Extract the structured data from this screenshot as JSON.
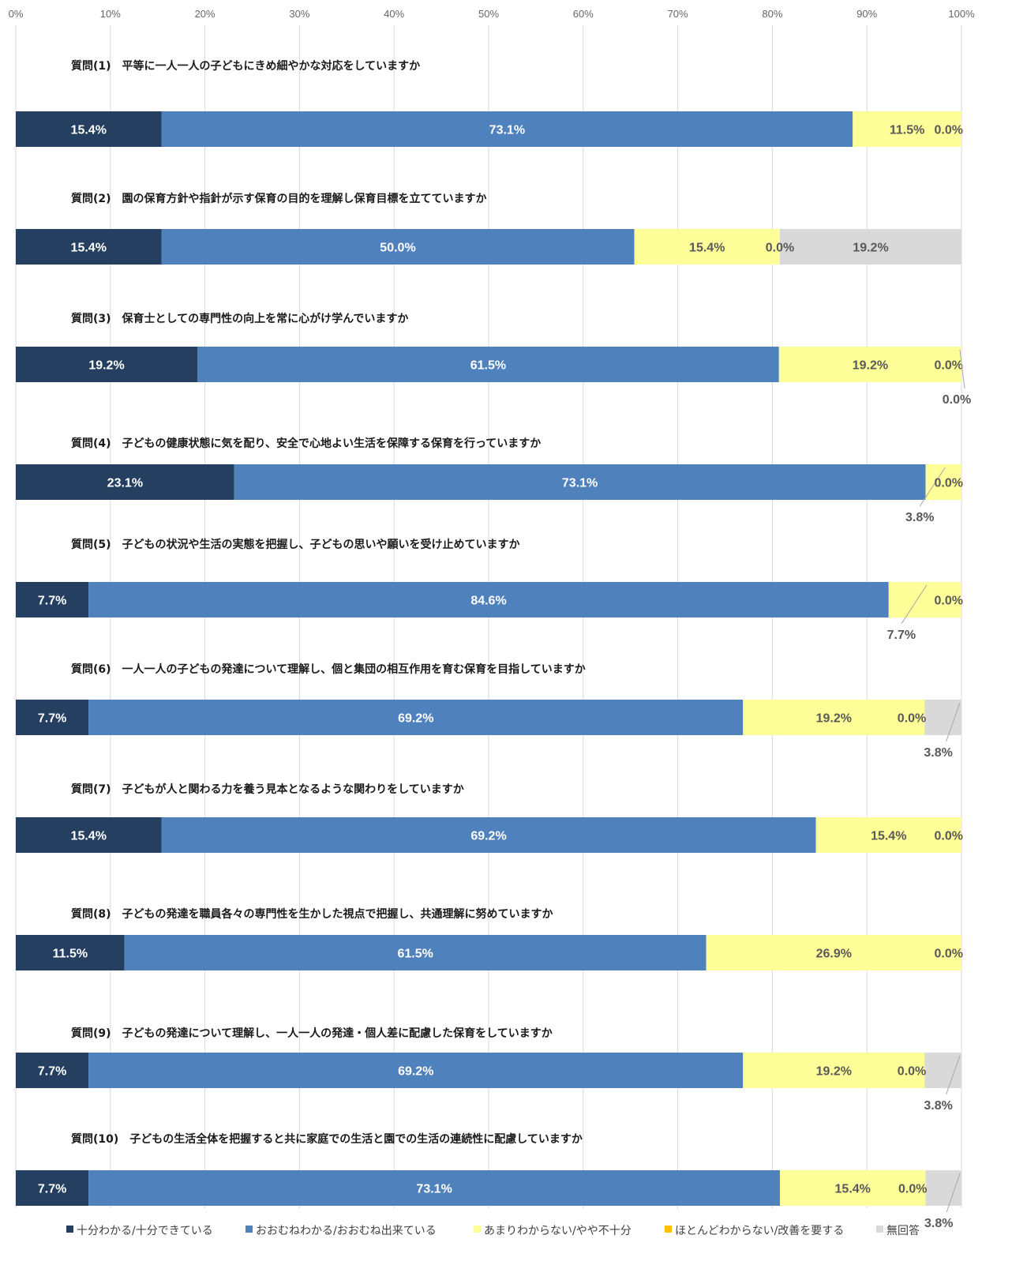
{
  "chart_data": {
    "type": "bar",
    "stacked": "percent",
    "orientation": "horizontal",
    "xlim": [
      0,
      100
    ],
    "x_ticks": [
      "0%",
      "10%",
      "20%",
      "30%",
      "40%",
      "50%",
      "60%",
      "70%",
      "80%",
      "90%",
      "100%"
    ],
    "grid": "vertical",
    "legend_position": "bottom",
    "categories": [
      "質問(1)　平等に一人一人の子どもにきめ細やかな対応をしていますか",
      "質問(2)　園の保育方針や指針が示す保育の目的を理解し保育目標を立てていますか",
      "質問(3)　保育士としての専門性の向上を常に心がけ学んでいますか",
      "質問(4)　子どもの健康状態に気を配り、安全で心地よい生活を保障する保育を行っていますか",
      "質問(5)　子どもの状況や生活の実態を把握し、子どもの思いや願いを受け止めていますか",
      "質問(6)　一人一人の子どもの発達について理解し、個と集団の相互作用を育む保育を目指していますか",
      "質問(7)　子どもが人と関わる力を養う見本となるような関わりをしていますか",
      "質問(8)　子どもの発達を職員各々の専門性を生かした視点で把握し、共通理解に努めていますか",
      "質問(9)　子どもの発達について理解し、一人一人の発達・個人差に配慮した保育をしていますか",
      "質問(10)　子どもの生活全体を把握すると共に家庭での生活と園での生活の連続性に配慮していますか"
    ],
    "series": [
      {
        "name": "十分わかる/十分できている",
        "color": "#243f60",
        "label_color": "#ffffff",
        "values": [
          15.4,
          15.4,
          19.2,
          23.1,
          7.7,
          7.7,
          15.4,
          11.5,
          7.7,
          7.7
        ]
      },
      {
        "name": "おおむねわかる/おおむね出来ている",
        "color": "#4f81bd",
        "label_color": "#ffffff",
        "values": [
          73.1,
          50.0,
          61.5,
          73.1,
          84.6,
          69.2,
          69.2,
          61.5,
          69.2,
          73.1
        ]
      },
      {
        "name": "あまりわからない/やや不十分",
        "color": "#ffff99",
        "label_color": "#595959",
        "values": [
          11.5,
          15.4,
          19.2,
          3.8,
          7.7,
          19.2,
          15.4,
          26.9,
          19.2,
          15.4
        ]
      },
      {
        "name": "ほとんどわからない/改善を要する",
        "color": "#ffc000",
        "label_color": "#595959",
        "values": [
          0.0,
          0.0,
          0.0,
          0.0,
          0.0,
          0.0,
          0.0,
          0.0,
          0.0,
          0.0
        ]
      },
      {
        "name": "無回答",
        "color": "#d9d9d9",
        "label_color": "#595959",
        "values": [
          null,
          19.2,
          0.0,
          null,
          null,
          3.8,
          null,
          null,
          3.8,
          3.8
        ]
      }
    ],
    "data_labels": [
      [
        "15.4%",
        "73.1%",
        "11.5%",
        "0.0%",
        null
      ],
      [
        "15.4%",
        "50.0%",
        "15.4%",
        "0.0%",
        "19.2%"
      ],
      [
        "19.2%",
        "61.5%",
        "19.2%",
        "0.0%",
        "0.0%"
      ],
      [
        "23.1%",
        "73.1%",
        "3.8%",
        "0.0%",
        null
      ],
      [
        "7.7%",
        "84.6%",
        "7.7%",
        "0.0%",
        null
      ],
      [
        "7.7%",
        "69.2%",
        "19.2%",
        "0.0%",
        "3.8%"
      ],
      [
        "15.4%",
        "69.2%",
        "15.4%",
        "0.0%",
        null
      ],
      [
        "11.5%",
        "61.5%",
        "26.9%",
        "0.0%",
        null
      ],
      [
        "7.7%",
        "69.2%",
        "19.2%",
        "0.0%",
        "3.8%"
      ],
      [
        "7.7%",
        "73.1%",
        "15.4%",
        "0.0%",
        "3.8%"
      ]
    ]
  }
}
